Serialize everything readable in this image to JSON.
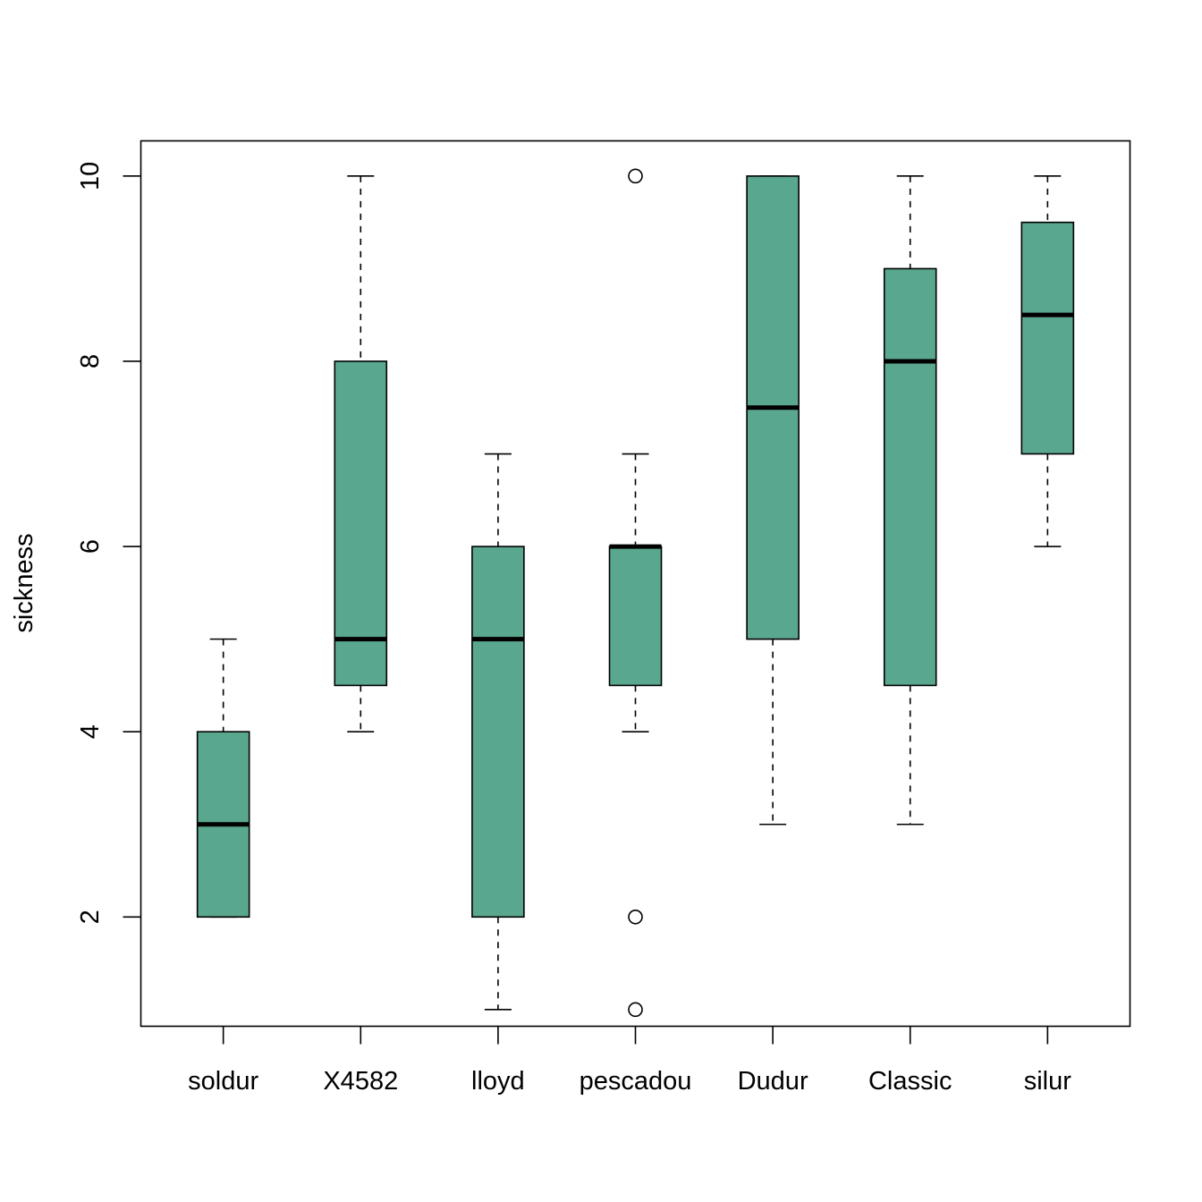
{
  "chart_data": {
    "type": "boxplot",
    "ylabel": "sickness",
    "xlabel": "",
    "ylim": [
      0.82,
      10.38
    ],
    "yticks": [
      2,
      4,
      6,
      8,
      10
    ],
    "categories": [
      "soldur",
      "X4582",
      "lloyd",
      "pescadou",
      "Dudur",
      "Classic",
      "silur"
    ],
    "boxes": [
      {
        "category": "soldur",
        "whisker_low": 2,
        "q1": 2,
        "median": 3,
        "q3": 4,
        "whisker_high": 5,
        "outliers": []
      },
      {
        "category": "X4582",
        "whisker_low": 4,
        "q1": 4.5,
        "median": 5,
        "q3": 8,
        "whisker_high": 10,
        "outliers": []
      },
      {
        "category": "lloyd",
        "whisker_low": 1,
        "q1": 2,
        "median": 5,
        "q3": 6,
        "whisker_high": 7,
        "outliers": []
      },
      {
        "category": "pescadou",
        "whisker_low": 4,
        "q1": 4.5,
        "median": 6,
        "q3": 6,
        "whisker_high": 7,
        "outliers": [
          10,
          2,
          1
        ]
      },
      {
        "category": "Dudur",
        "whisker_low": 3,
        "q1": 5,
        "median": 7.5,
        "q3": 10,
        "whisker_high": 10,
        "outliers": []
      },
      {
        "category": "Classic",
        "whisker_low": 3,
        "q1": 4.5,
        "median": 8,
        "q3": 9,
        "whisker_high": 10,
        "outliers": []
      },
      {
        "category": "silur",
        "whisker_low": 6,
        "q1": 7,
        "median": 8.5,
        "q3": 9.5,
        "whisker_high": 10,
        "outliers": []
      }
    ],
    "box_fill": "#5aa78f",
    "grid": false,
    "legend": "none"
  }
}
